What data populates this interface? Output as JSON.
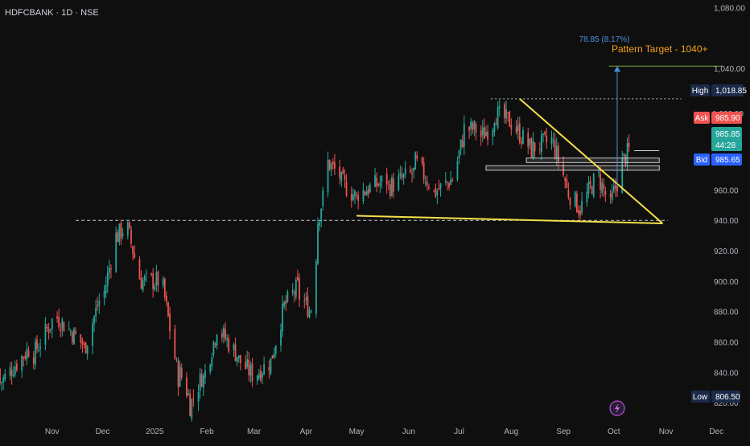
{
  "header": {
    "symbol_line": "HDFCBANK · 1D · NSE"
  },
  "colors": {
    "background": "#0f0f0f",
    "up": "#26a69a",
    "down": "#ef5350",
    "trendline": "#f5e04a",
    "target": "#7fa83c",
    "target_label": "#f7a21b",
    "measure": "#4a90e2",
    "ask": "#ef5350",
    "bid": "#2962ff",
    "last": "#26a69a",
    "axis_text": "#b2b5be",
    "tag_bg": "#1c2a4a",
    "zone": "#c8c8c8"
  },
  "annotations": {
    "measure_text": "78.85 (8.17%)",
    "target_text": "Pattern Target - 1040+"
  },
  "price_tags": {
    "high_label": "High",
    "high_value": "1,018.85",
    "ask_label": "Ask",
    "ask_value": "985.90",
    "last_value": "985.85",
    "countdown": "44:28",
    "bid_label": "Bid",
    "bid_value": "985.65",
    "low_label": "Low",
    "low_value": "806.50",
    "hidden_tick": "1,000.00"
  },
  "chart_data": {
    "type": "candlestick",
    "ylim": [
      800,
      1085
    ],
    "y_ticks": [
      "1,080.00",
      "1,040.00",
      "960.00",
      "940.00",
      "920.00",
      "900.00",
      "880.00",
      "860.00",
      "840.00",
      "820.00"
    ],
    "y_tick_values": [
      1080,
      1040,
      960,
      940,
      920,
      900,
      880,
      860,
      840,
      820
    ],
    "x_ticks": [
      "Nov",
      "Dec",
      "2025",
      "Feb",
      "Mar",
      "Apr",
      "May",
      "Jun",
      "Jul",
      "Aug",
      "Sep",
      "Oct",
      "Nov",
      "Dec"
    ],
    "x_tick_dates": [
      "2024-11-01",
      "2024-12-01",
      "2025-01-01",
      "2025-02-01",
      "2025-03-01",
      "2025-04-01",
      "2025-05-01",
      "2025-06-01",
      "2025-07-01",
      "2025-08-01",
      "2025-09-01",
      "2025-10-01",
      "2025-11-01",
      "2025-12-01"
    ],
    "date_range": [
      "2024-10-01",
      "2025-12-20"
    ],
    "segments": [
      [
        "2024-10-01",
        842,
        833
      ],
      [
        "2024-10-20",
        858,
        850
      ],
      [
        "2024-11-04",
        880,
        876
      ],
      [
        "2024-11-20",
        858,
        855
      ],
      [
        "2024-12-02",
        898,
        893
      ],
      [
        "2024-12-10",
        935,
        930
      ],
      [
        "2024-12-16",
        938,
        934
      ],
      [
        "2024-12-24",
        898,
        900
      ],
      [
        "2025-01-06",
        900,
        895
      ],
      [
        "2025-01-16",
        830,
        840
      ],
      [
        "2025-01-22",
        822,
        818
      ],
      [
        "2025-01-30",
        840,
        836
      ],
      [
        "2025-02-07",
        868,
        870
      ],
      [
        "2025-02-20",
        850,
        848
      ],
      [
        "2025-03-03",
        835,
        840
      ],
      [
        "2025-03-12",
        848,
        852
      ],
      [
        "2025-03-20",
        888,
        885
      ],
      [
        "2025-03-28",
        898,
        890
      ],
      [
        "2025-04-04",
        880,
        882
      ],
      [
        "2025-04-08",
        930,
        940
      ],
      [
        "2025-04-14",
        970,
        978
      ],
      [
        "2025-04-22",
        968,
        965
      ],
      [
        "2025-05-02",
        954,
        958
      ],
      [
        "2025-05-20",
        967,
        962
      ],
      [
        "2025-06-05",
        972,
        978
      ],
      [
        "2025-06-16",
        960,
        958
      ],
      [
        "2025-06-28",
        968,
        970
      ],
      [
        "2025-07-04",
        998,
        1000
      ],
      [
        "2025-07-14",
        1000,
        995
      ],
      [
        "2025-07-22",
        1005,
        1010
      ],
      [
        "2025-08-04",
        1003,
        1000
      ],
      [
        "2025-08-14",
        985,
        988
      ],
      [
        "2025-08-26",
        993,
        990
      ],
      [
        "2025-09-03",
        963,
        960
      ],
      [
        "2025-09-12",
        946,
        950
      ],
      [
        "2025-09-22",
        972,
        968
      ],
      [
        "2025-09-30",
        946,
        955
      ],
      [
        "2025-10-06",
        975,
        978
      ],
      [
        "2025-10-10",
        986,
        985.85
      ]
    ],
    "trendlines": [
      {
        "name": "descending",
        "from": [
          "2025-08-06",
          1020
        ],
        "to": [
          "2025-10-30",
          938
        ]
      },
      {
        "name": "base",
        "from": [
          "2025-05-01",
          943
        ],
        "to": [
          "2025-10-30",
          938
        ]
      }
    ],
    "levels": [
      {
        "name": "resistance-dotted",
        "value": 1020,
        "from": "2025-07-20",
        "to": "2025-11-10"
      },
      {
        "name": "support-dashed",
        "value": 940,
        "from": "2024-11-15",
        "to": "2025-11-02"
      },
      {
        "name": "pattern-target",
        "value": 1041.5,
        "from": "2025-09-28",
        "to": "2025-12-05"
      },
      {
        "name": "current",
        "value": 985.85,
        "from": "2025-10-13",
        "to": "2025-10-28"
      }
    ],
    "zones": [
      {
        "from": "2025-08-10",
        "to": "2025-10-28",
        "top": 981,
        "bottom": 978
      },
      {
        "from": "2025-07-17",
        "to": "2025-10-28",
        "top": 976,
        "bottom": 973
      }
    ],
    "measure": {
      "date": "2025-10-03",
      "from": 962,
      "to": 1041
    },
    "last_price": 985.85
  }
}
